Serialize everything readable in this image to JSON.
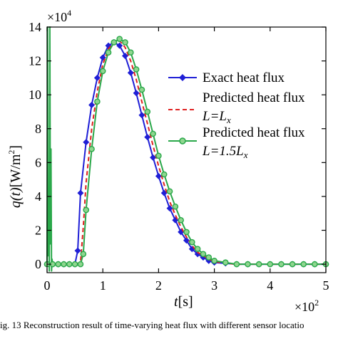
{
  "caption": "ig. 13 Reconstruction result of time-varying heat flux with different sensor locatio",
  "chart_data": {
    "type": "line",
    "xlabel_var": "t",
    "xlabel_unit": "[s]",
    "ylabel_var": "q(t)",
    "ylabel_unit": "[W/m",
    "ylabel_exp": "2",
    "ylabel_close": "]",
    "x_multiplier_base": "×10",
    "x_multiplier_exp": "2",
    "y_multiplier_base": "×10",
    "y_multiplier_exp": "4",
    "xlim": [
      0,
      5
    ],
    "ylim": [
      -0.5,
      14
    ],
    "xticks": [
      0,
      1,
      2,
      3,
      4,
      5
    ],
    "yticks": [
      0,
      2,
      4,
      6,
      8,
      10,
      12,
      14
    ],
    "grid": false,
    "legend_position": "right",
    "series": [
      {
        "name": "Exact heat flux",
        "color": "#1f1fd6",
        "style": "solid",
        "marker": "diamond",
        "x": [
          0.0,
          0.1,
          0.2,
          0.3,
          0.4,
          0.5,
          0.55,
          0.6,
          0.7,
          0.8,
          0.9,
          1.0,
          1.1,
          1.2,
          1.3,
          1.4,
          1.5,
          1.6,
          1.7,
          1.8,
          1.9,
          2.0,
          2.1,
          2.2,
          2.3,
          2.4,
          2.5,
          2.6,
          2.7,
          2.8,
          2.9,
          3.0,
          3.2,
          3.4,
          3.6,
          3.8,
          4.0,
          4.2,
          4.4,
          4.6,
          4.8,
          5.0
        ],
        "y": [
          0.0,
          0.0,
          0.0,
          0.0,
          0.0,
          0.0,
          0.8,
          4.2,
          7.2,
          9.4,
          11.0,
          12.2,
          12.9,
          13.1,
          12.9,
          12.3,
          11.3,
          10.1,
          8.8,
          7.5,
          6.3,
          5.2,
          4.2,
          3.3,
          2.6,
          1.9,
          1.4,
          0.9,
          0.6,
          0.4,
          0.2,
          0.1,
          0.05,
          0.0,
          0.0,
          0.0,
          0.0,
          0.0,
          0.0,
          0.0,
          0.0,
          0.0
        ]
      },
      {
        "name": "Predicted heat flux L=Lx",
        "label_line1": "Predicted heat flux",
        "label_line2_prefix": "L",
        "label_line2_mid": "=L",
        "label_line2_sub": "x",
        "color": "#e02020",
        "style": "dashed",
        "marker": "none",
        "x": [
          0.0,
          0.1,
          0.2,
          0.3,
          0.4,
          0.5,
          0.6,
          0.65,
          0.7,
          0.8,
          0.9,
          1.0,
          1.1,
          1.2,
          1.3,
          1.4,
          1.5,
          1.6,
          1.7,
          1.8,
          1.9,
          2.0,
          2.1,
          2.2,
          2.3,
          2.4,
          2.5,
          2.6,
          2.7,
          2.8,
          2.9,
          3.0,
          3.2,
          3.4,
          3.6,
          3.8,
          4.0,
          4.2,
          4.4,
          4.6,
          4.8,
          5.0
        ],
        "y": [
          0.0,
          0.0,
          0.0,
          0.0,
          0.0,
          0.0,
          0.1,
          2.2,
          4.8,
          8.0,
          10.2,
          11.8,
          12.7,
          13.1,
          13.2,
          12.8,
          12.0,
          10.9,
          9.6,
          8.3,
          7.0,
          5.8,
          4.7,
          3.7,
          2.9,
          2.2,
          1.6,
          1.1,
          0.7,
          0.5,
          0.3,
          0.15,
          0.05,
          0.0,
          0.0,
          0.0,
          0.0,
          0.0,
          0.0,
          0.0,
          0.0,
          0.0
        ]
      },
      {
        "name": "Predicted heat flux L=1.5Lx",
        "label_line1": "Predicted heat flux",
        "label_line2_prefix": "L",
        "label_line2_mid": "=1.5L",
        "label_line2_sub": "x",
        "color": "#2aa84a",
        "style": "solid",
        "marker": "circle",
        "x": [
          0.0,
          0.01,
          0.02,
          0.03,
          0.04,
          0.05,
          0.06,
          0.07,
          0.08,
          0.09,
          0.1,
          0.2,
          0.3,
          0.4,
          0.5,
          0.6,
          0.65,
          0.7,
          0.8,
          0.9,
          1.0,
          1.1,
          1.2,
          1.3,
          1.4,
          1.5,
          1.6,
          1.7,
          1.8,
          1.9,
          2.0,
          2.1,
          2.2,
          2.3,
          2.4,
          2.5,
          2.6,
          2.7,
          2.8,
          2.9,
          3.0,
          3.2,
          3.4,
          3.6,
          3.8,
          4.0,
          4.2,
          4.4,
          4.6,
          4.8,
          5.0
        ],
        "y": [
          0.0,
          14.0,
          0.5,
          3.5,
          -0.4,
          14.0,
          1.2,
          6.8,
          -0.4,
          0.3,
          0.0,
          0.0,
          0.0,
          0.0,
          0.0,
          0.0,
          0.6,
          3.2,
          6.8,
          9.6,
          11.4,
          12.5,
          13.1,
          13.3,
          13.1,
          12.5,
          11.5,
          10.3,
          9.0,
          7.7,
          6.4,
          5.3,
          4.3,
          3.4,
          2.6,
          1.9,
          1.3,
          0.9,
          0.6,
          0.4,
          0.2,
          0.1,
          0.0,
          0.0,
          0.0,
          0.0,
          0.0,
          0.0,
          0.0,
          0.0,
          0.0
        ]
      }
    ]
  }
}
